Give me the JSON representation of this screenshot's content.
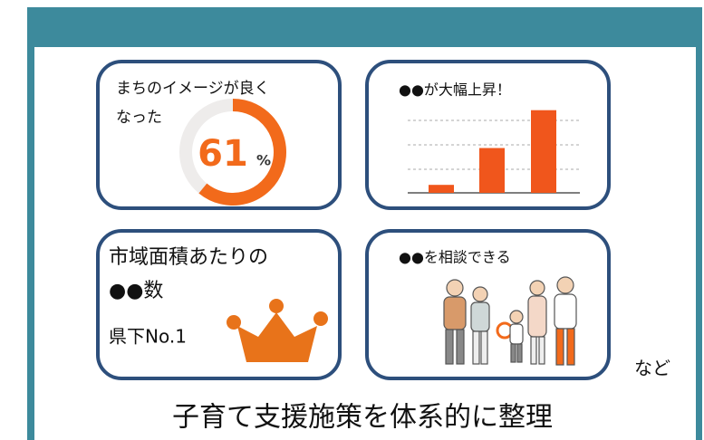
{
  "panels": [
    {
      "title_lines": [
        "まちのイメージが良く",
        "なった"
      ],
      "value": 61,
      "unit": "%"
    },
    {
      "title": "●●が大幅上昇！",
      "bars": [
        8,
        45,
        83
      ],
      "ylim": [
        0,
        100
      ]
    },
    {
      "title_lines": [
        "市域面積あたりの",
        "●●数"
      ],
      "rank": "県下No.1"
    },
    {
      "title": "●●を相談できる"
    }
  ],
  "suffix": "など",
  "caption": "子育て支援施策を体系的に整理"
}
